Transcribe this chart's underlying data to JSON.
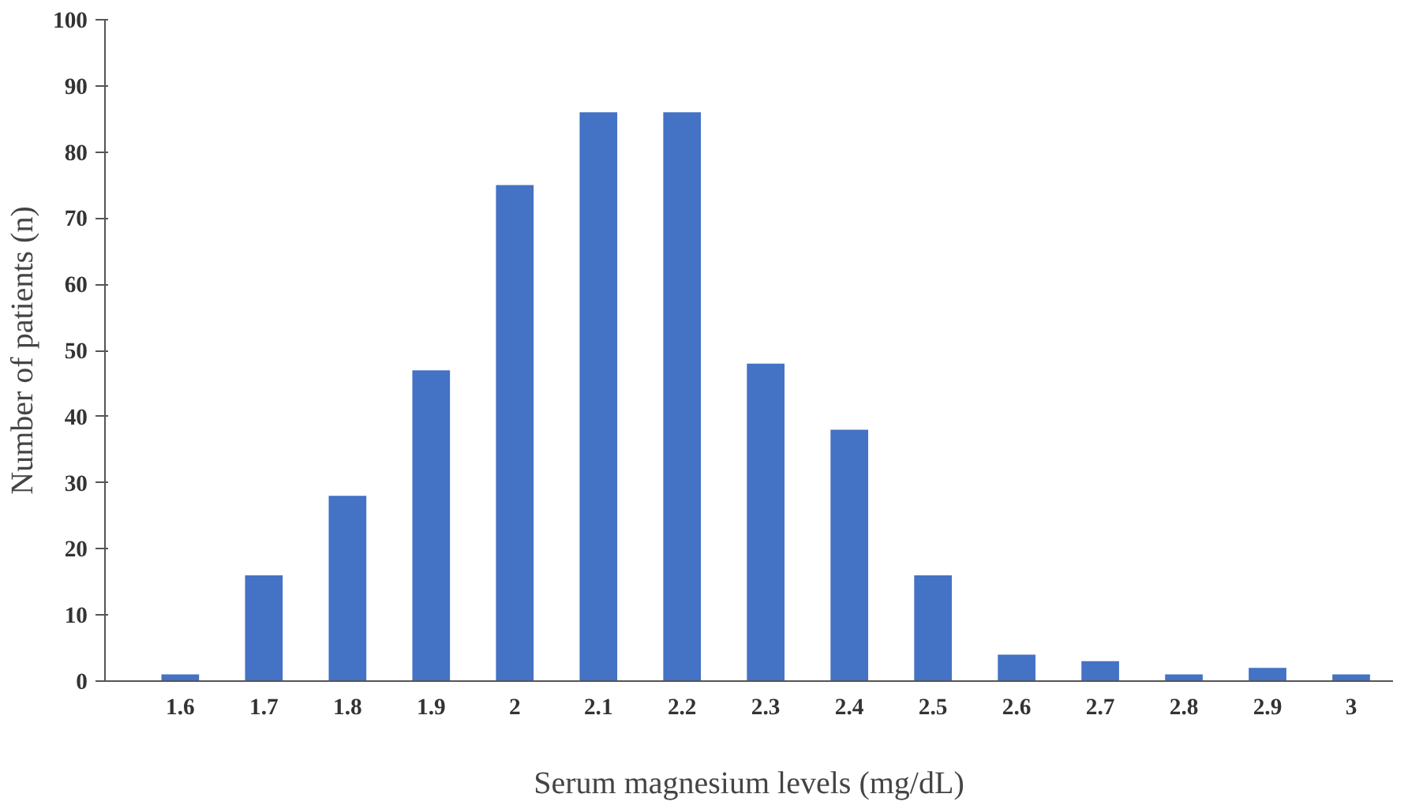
{
  "chart_data": {
    "type": "bar",
    "xlabel": "Serum magnesium levels (mg/dL)",
    "ylabel": "Number of patients (n)",
    "categories": [
      "1.6",
      "1.7",
      "1.8",
      "1.9",
      "2",
      "2.1",
      "2.2",
      "2.3",
      "2.4",
      "2.5",
      "2.6",
      "2.7",
      "2.8",
      "2.9",
      "3"
    ],
    "values": [
      1,
      16,
      28,
      47,
      75,
      86,
      86,
      48,
      38,
      16,
      4,
      3,
      1,
      2,
      1
    ],
    "color": "#4472c4",
    "ylim": [
      0,
      100
    ],
    "yticks": [
      0,
      10,
      20,
      30,
      40,
      50,
      60,
      70,
      80,
      90,
      100
    ],
    "grid": false
  }
}
